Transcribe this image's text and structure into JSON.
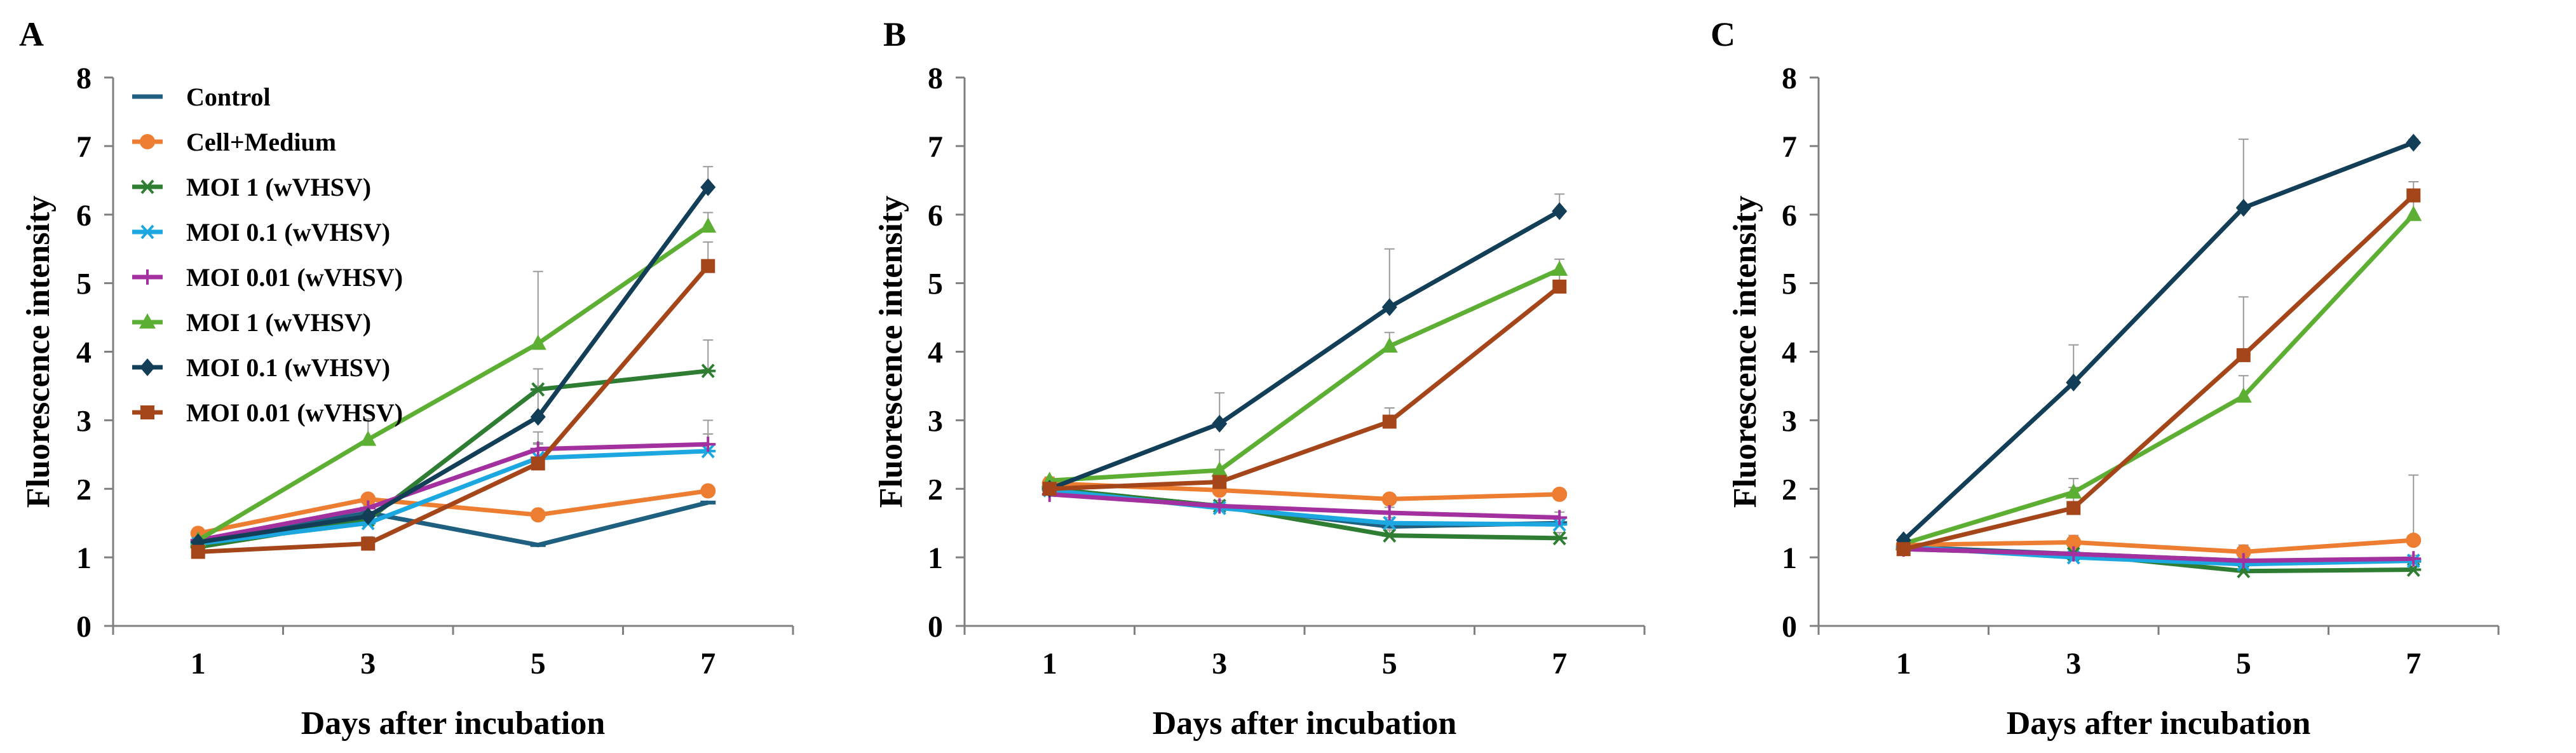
{
  "chart_data": [
    {
      "type": "line",
      "panel_label": "A",
      "xlabel": "Days after incubation",
      "ylabel": "Fluorescence intensity",
      "x": [
        1,
        3,
        5,
        7
      ],
      "ylim": [
        0,
        8
      ],
      "yticks": [
        0,
        1,
        2,
        3,
        4,
        5,
        6,
        7,
        8
      ],
      "legend_position": "top-left",
      "series": [
        {
          "name": "Control",
          "marker": "dash",
          "color": "#1F5F7F",
          "values": [
            1.22,
            1.65,
            1.18,
            1.8
          ]
        },
        {
          "name": "Cell+Medium",
          "marker": "circle",
          "color": "#ED7D31",
          "values": [
            1.35,
            1.85,
            1.62,
            1.97
          ]
        },
        {
          "name": "MOI 1 (wVHSV)",
          "marker": "star",
          "color": "#2E7D32",
          "values": [
            1.15,
            1.55,
            3.45,
            3.72
          ],
          "errors": [
            0.05,
            0.1,
            0.3,
            0.45
          ]
        },
        {
          "name": "MOI 0.1 (wVHSV)",
          "marker": "star",
          "color": "#1CA7E0",
          "values": [
            1.2,
            1.5,
            2.45,
            2.55
          ],
          "errors": [
            0.05,
            0.1,
            0.2,
            0.25
          ]
        },
        {
          "name": "MOI 0.01 (wVHSV)",
          "marker": "plus",
          "color": "#A2309E",
          "values": [
            1.25,
            1.72,
            2.58,
            2.65
          ],
          "errors": [
            0.05,
            0.12,
            0.25,
            0.35
          ]
        },
        {
          "name": "MOI 1 (wVHSV)",
          "marker": "triangle",
          "color": "#5DAF33",
          "values": [
            1.25,
            2.72,
            4.12,
            5.83
          ],
          "errors": [
            0.05,
            0.3,
            1.05,
            0.2
          ]
        },
        {
          "name": "MOI 0.1 (wVHSV)",
          "marker": "diamond",
          "color": "#123E57",
          "values": [
            1.22,
            1.6,
            3.05,
            6.4
          ],
          "errors": [
            0.05,
            0.15,
            0.45,
            0.3
          ]
        },
        {
          "name": "MOI 0.01 (wVHSV)",
          "marker": "square",
          "color": "#A5461A",
          "values": [
            1.08,
            1.2,
            2.37,
            5.25
          ],
          "errors": [
            0.05,
            0.1,
            0.3,
            0.35
          ]
        }
      ]
    },
    {
      "type": "line",
      "panel_label": "B",
      "xlabel": "Days after incubation",
      "ylabel": "Fluorescence intensity",
      "x": [
        1,
        3,
        5,
        7
      ],
      "ylim": [
        0,
        8
      ],
      "yticks": [
        0,
        1,
        2,
        3,
        4,
        5,
        6,
        7,
        8
      ],
      "series": [
        {
          "marker": "dash",
          "color": "#1F5F7F",
          "values": [
            2.0,
            1.75,
            1.45,
            1.5
          ]
        },
        {
          "marker": "circle",
          "color": "#ED7D31",
          "values": [
            2.08,
            1.98,
            1.85,
            1.92
          ]
        },
        {
          "marker": "star",
          "color": "#2E7D32",
          "values": [
            2.0,
            1.75,
            1.32,
            1.28
          ],
          "errors": [
            0.1,
            0.08,
            0.08,
            0.08
          ]
        },
        {
          "marker": "star",
          "color": "#1CA7E0",
          "values": [
            1.98,
            1.72,
            1.5,
            1.48
          ],
          "errors": [
            0.1,
            0.08,
            0.08,
            0.08
          ]
        },
        {
          "marker": "plus",
          "color": "#A2309E",
          "values": [
            1.92,
            1.75,
            1.65,
            1.58
          ],
          "errors": [
            0.08,
            0.08,
            0.08,
            0.08
          ]
        },
        {
          "marker": "triangle",
          "color": "#5DAF33",
          "values": [
            2.12,
            2.27,
            4.08,
            5.2
          ],
          "errors": [
            0.05,
            0.3,
            0.2,
            0.15
          ]
        },
        {
          "marker": "diamond",
          "color": "#123E57",
          "values": [
            2.0,
            2.95,
            4.65,
            6.05
          ],
          "errors": [
            0.05,
            0.45,
            0.85,
            0.25
          ]
        },
        {
          "marker": "square",
          "color": "#A5461A",
          "values": [
            2.0,
            2.1,
            2.98,
            4.95
          ],
          "errors": [
            0.05,
            0.15,
            0.2,
            0.2
          ]
        }
      ]
    },
    {
      "type": "line",
      "panel_label": "C",
      "xlabel": "Days after incubation",
      "ylabel": "Fluorescence intensity",
      "x": [
        1,
        3,
        5,
        7
      ],
      "ylim": [
        0,
        8
      ],
      "yticks": [
        0,
        1,
        2,
        3,
        4,
        5,
        6,
        7,
        8
      ],
      "series": [
        {
          "marker": "dash",
          "color": "#1F5F7F",
          "values": [
            1.15,
            1.05,
            0.95,
            0.95
          ]
        },
        {
          "marker": "circle",
          "color": "#ED7D31",
          "values": [
            1.18,
            1.22,
            1.08,
            1.25
          ],
          "errors": [
            0.05,
            0.1,
            0.1,
            0.95
          ]
        },
        {
          "marker": "star",
          "color": "#2E7D32",
          "values": [
            1.12,
            1.05,
            0.8,
            0.82
          ],
          "errors": [
            0.05,
            0.05,
            0.05,
            0.05
          ]
        },
        {
          "marker": "star",
          "color": "#1CA7E0",
          "values": [
            1.15,
            1.0,
            0.9,
            0.95
          ],
          "errors": [
            0.05,
            0.05,
            0.05,
            0.05
          ]
        },
        {
          "marker": "plus",
          "color": "#A2309E",
          "values": [
            1.12,
            1.05,
            0.95,
            0.98
          ],
          "errors": [
            0.05,
            0.05,
            0.05,
            0.05
          ]
        },
        {
          "marker": "triangle",
          "color": "#5DAF33",
          "values": [
            1.2,
            1.95,
            3.35,
            6.0
          ],
          "errors": [
            0.05,
            0.2,
            0.3,
            0.25
          ]
        },
        {
          "marker": "diamond",
          "color": "#123E57",
          "values": [
            1.25,
            3.55,
            6.1,
            7.05
          ],
          "errors": [
            0.05,
            0.55,
            1.0,
            0.05
          ]
        },
        {
          "marker": "square",
          "color": "#A5461A",
          "values": [
            1.12,
            1.72,
            3.95,
            6.28
          ],
          "errors": [
            0.05,
            0.3,
            0.85,
            0.2
          ]
        }
      ]
    }
  ]
}
